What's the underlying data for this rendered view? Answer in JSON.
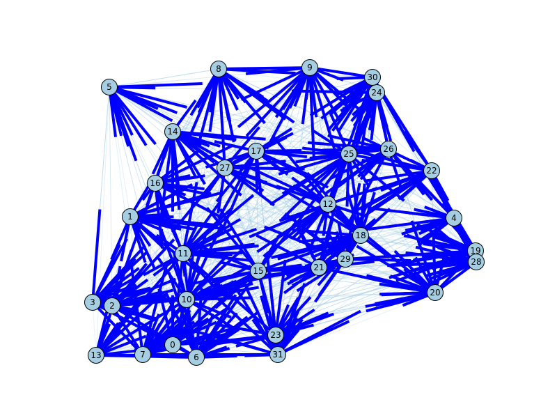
{
  "graph": {
    "node_fill": "#a6cee3",
    "node_stroke": "#000000",
    "edge_colors": {
      "strong": "#0000ff",
      "weak": "#a6cee3"
    },
    "nodes": [
      {
        "id": "0",
        "label": "0"
      },
      {
        "id": "1",
        "label": "1"
      },
      {
        "id": "2",
        "label": "2"
      },
      {
        "id": "3",
        "label": "3"
      },
      {
        "id": "4",
        "label": "4"
      },
      {
        "id": "5",
        "label": "5"
      },
      {
        "id": "6",
        "label": "6"
      },
      {
        "id": "7",
        "label": "7"
      },
      {
        "id": "8",
        "label": "8"
      },
      {
        "id": "9",
        "label": "9"
      },
      {
        "id": "10",
        "label": "10"
      },
      {
        "id": "11",
        "label": "11"
      },
      {
        "id": "12",
        "label": "12"
      },
      {
        "id": "13",
        "label": "13"
      },
      {
        "id": "14",
        "label": "14"
      },
      {
        "id": "15",
        "label": "15"
      },
      {
        "id": "16",
        "label": "16"
      },
      {
        "id": "17",
        "label": "17"
      },
      {
        "id": "18",
        "label": "18"
      },
      {
        "id": "19",
        "label": "19"
      },
      {
        "id": "20",
        "label": "20"
      },
      {
        "id": "21",
        "label": "21"
      },
      {
        "id": "22",
        "label": "22"
      },
      {
        "id": "23",
        "label": "23"
      },
      {
        "id": "24",
        "label": "24"
      },
      {
        "id": "25",
        "label": "25"
      },
      {
        "id": "26",
        "label": "26"
      },
      {
        "id": "27",
        "label": "27"
      },
      {
        "id": "28",
        "label": "28"
      },
      {
        "id": "29",
        "label": "29"
      },
      {
        "id": "30",
        "label": "30"
      },
      {
        "id": "31",
        "label": "31"
      }
    ]
  }
}
